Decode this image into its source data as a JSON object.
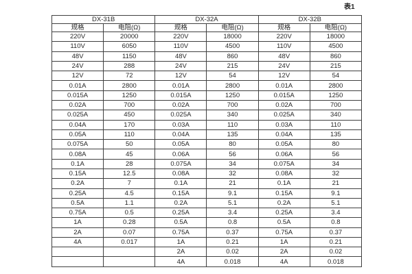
{
  "caption": "表1",
  "colors": {
    "border": "#3f3f3f",
    "text": "#262626",
    "background": "#ffffff"
  },
  "table": {
    "group_headers": [
      "DX-31B",
      "DX-32A",
      "DX-32B"
    ],
    "sub_headers": [
      "规格",
      "电阻(Ω)",
      "规格",
      "电阻(Ω)",
      "规格",
      "电阻(Ω)"
    ],
    "rows": [
      [
        "220V",
        "20000",
        "220V",
        "18000",
        "220V",
        "18000"
      ],
      [
        "110V",
        "6050",
        "110V",
        "4500",
        "110V",
        "4500"
      ],
      [
        "48V",
        "1150",
        "48V",
        "860",
        "48V",
        "860"
      ],
      [
        "24V",
        "288",
        "24V",
        "215",
        "24V",
        "215"
      ],
      [
        "12V",
        "72",
        "12V",
        "54",
        "12V",
        "54"
      ],
      [
        "0.01A",
        "2800",
        "0.01A",
        "2800",
        "0.01A",
        "2800"
      ],
      [
        "0.015A",
        "1250",
        "0.015A",
        "1250",
        "0.015A",
        "1250"
      ],
      [
        "0.02A",
        "700",
        "0.02A",
        "700",
        "0.02A",
        "700"
      ],
      [
        "0.025A",
        "450",
        "0.025A",
        "340",
        "0.025A",
        "340"
      ],
      [
        "0.04A",
        "170",
        "0.03A",
        "110",
        "0.03A",
        "110"
      ],
      [
        "0.05A",
        "110",
        "0.04A",
        "135",
        "0.04A",
        "135"
      ],
      [
        "0.075A",
        "50",
        "0.05A",
        "80",
        "0.05A",
        "80"
      ],
      [
        "0.08A",
        "45",
        "0.06A",
        "56",
        "0.06A",
        "56"
      ],
      [
        "0.1A",
        "28",
        "0.075A",
        "34",
        "0.075A",
        "34"
      ],
      [
        "0.15A",
        "12.5",
        "0.08A",
        "32",
        "0.08A",
        "32"
      ],
      [
        "0.2A",
        "7",
        "0.1A",
        "21",
        "0.1A",
        "21"
      ],
      [
        "0.25A",
        "4.5",
        "0.15A",
        "9.1",
        "0.15A",
        "9.1"
      ],
      [
        "0.5A",
        "1.1",
        "0.2A",
        "5.1",
        "0.2A",
        "5.1"
      ],
      [
        "0.75A",
        "0.5",
        "0.25A",
        "3.4",
        "0.25A",
        "3.4"
      ],
      [
        "1A",
        "0.28",
        "0.5A",
        "0.8",
        "0.5A",
        "0.8"
      ],
      [
        "2A",
        "0.07",
        "0.75A",
        "0.37",
        "0.75A",
        "0.37"
      ],
      [
        "4A",
        "0.017",
        "1A",
        "0.21",
        "1A",
        "0.21"
      ],
      [
        "",
        "",
        "2A",
        "0.02",
        "2A",
        "0.02"
      ],
      [
        "",
        "",
        "4A",
        "0.018",
        "4A",
        "0.018"
      ]
    ]
  }
}
